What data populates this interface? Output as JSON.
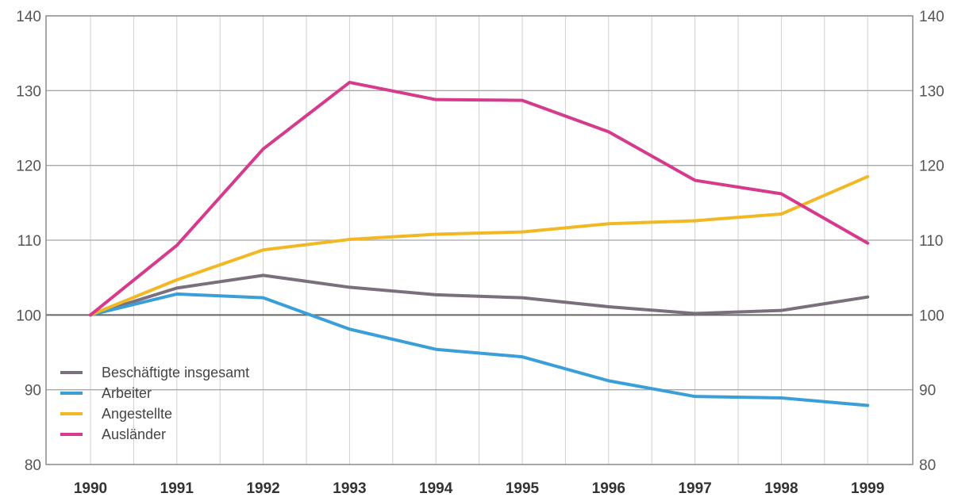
{
  "chart_data": {
    "type": "line",
    "x": [
      "1990",
      "1991",
      "1992",
      "1993",
      "1994",
      "1995",
      "1996",
      "1997",
      "1998",
      "1999"
    ],
    "ylim": [
      80,
      140
    ],
    "yticks": [
      80,
      90,
      100,
      110,
      120,
      130,
      140
    ],
    "grid": true,
    "legend_position": "bottom-left",
    "series": [
      {
        "name": "Beschäftigte insgesamt",
        "color": "#7a6f7c",
        "values": [
          100,
          103.6,
          105.3,
          103.7,
          102.7,
          102.3,
          101.1,
          100.2,
          100.6,
          102.4
        ]
      },
      {
        "name": "Arbeiter",
        "color": "#3a9fd8",
        "values": [
          100,
          102.8,
          102.3,
          98.1,
          95.4,
          94.4,
          91.2,
          89.1,
          88.9,
          87.9
        ]
      },
      {
        "name": "Angestellte",
        "color": "#f2b824",
        "values": [
          100,
          104.7,
          108.7,
          110.1,
          110.8,
          111.1,
          112.2,
          112.6,
          113.5,
          118.5
        ]
      },
      {
        "name": "Ausländer",
        "color": "#d63a8c",
        "values": [
          100,
          109.3,
          122.2,
          131.1,
          128.8,
          128.7,
          124.5,
          118.0,
          116.2,
          109.6
        ]
      }
    ]
  }
}
